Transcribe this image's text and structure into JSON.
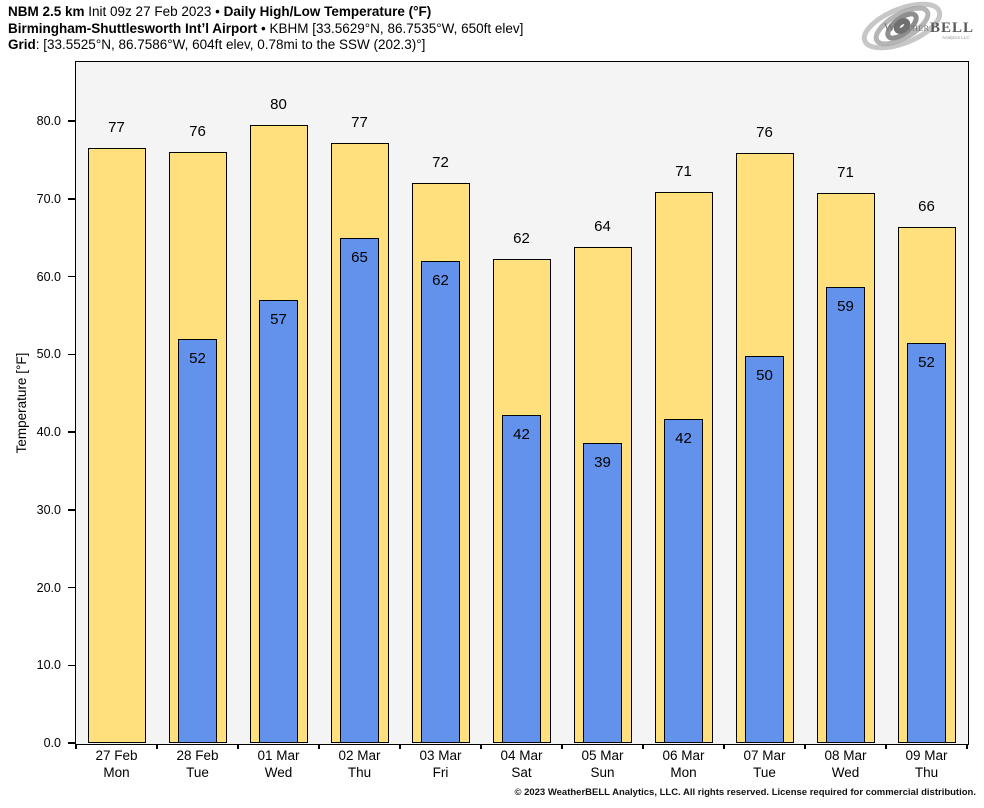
{
  "header": {
    "line1": {
      "model": "NBM 2.5 km",
      "init": " Init 09z 27 Feb 2023 ",
      "sep": "• ",
      "product": "Daily High/Low Temperature (°F)"
    },
    "line2": {
      "station": "Birmingham-Shuttlesworth Intʼl Airport",
      "sep": " • ",
      "details": "KBHM [33.5629°N, 86.7535°W, 650ft elev]"
    },
    "line3": {
      "label": "Grid",
      "details": ": [33.5525°N, 86.7586°W, 604ft elev, 0.78mi to the SSW (202.3)°]"
    }
  },
  "logo": {
    "brand_weather": "Weather",
    "brand_bell": "BELL",
    "subtext": "Analytics LLC"
  },
  "footer": {
    "copyright": "© 2023 WeatherBELL Analytics, LLC. All rights reserved. License required for commercial distribution."
  },
  "chart_data": {
    "type": "bar",
    "title": "Daily High/Low Temperature (°F)",
    "ylabel": "Temperature [°F]",
    "ylim": [
      0,
      87.6
    ],
    "yticks": [
      0,
      10,
      20,
      30,
      40,
      50,
      60,
      70,
      80
    ],
    "ytick_labels": [
      "0.0",
      "10.0",
      "20.0",
      "30.0",
      "40.0",
      "50.0",
      "60.0",
      "70.0",
      "80.0"
    ],
    "grid": false,
    "legend": "none",
    "plot_bg": "#F4F4F4",
    "bar_edge": "#000000",
    "categories": [
      {
        "date": "27 Feb",
        "day": "Mon"
      },
      {
        "date": "28 Feb",
        "day": "Tue"
      },
      {
        "date": "01 Mar",
        "day": "Wed"
      },
      {
        "date": "02 Mar",
        "day": "Thu"
      },
      {
        "date": "03 Mar",
        "day": "Fri"
      },
      {
        "date": "04 Mar",
        "day": "Sat"
      },
      {
        "date": "05 Mar",
        "day": "Sun"
      },
      {
        "date": "06 Mar",
        "day": "Mon"
      },
      {
        "date": "07 Mar",
        "day": "Tue"
      },
      {
        "date": "08 Mar",
        "day": "Wed"
      },
      {
        "date": "09 Mar",
        "day": "Thu"
      }
    ],
    "series": [
      {
        "name": "Daily High",
        "color": "#FFE07D",
        "values": [
          77,
          76,
          80,
          77,
          72,
          62,
          64,
          71,
          76,
          71,
          66
        ],
        "draw_values": [
          76.5,
          76.0,
          79.5,
          77.2,
          72.0,
          62.3,
          63.8,
          70.9,
          75.9,
          70.8,
          66.4
        ]
      },
      {
        "name": "Daily Low",
        "color": "#6292EB",
        "values": [
          null,
          52,
          57,
          65,
          62,
          42,
          39,
          42,
          50,
          59,
          52
        ],
        "draw_values": [
          null,
          52.0,
          57.0,
          65.0,
          62.0,
          42.2,
          38.6,
          41.7,
          49.8,
          58.6,
          51.5
        ]
      }
    ]
  }
}
